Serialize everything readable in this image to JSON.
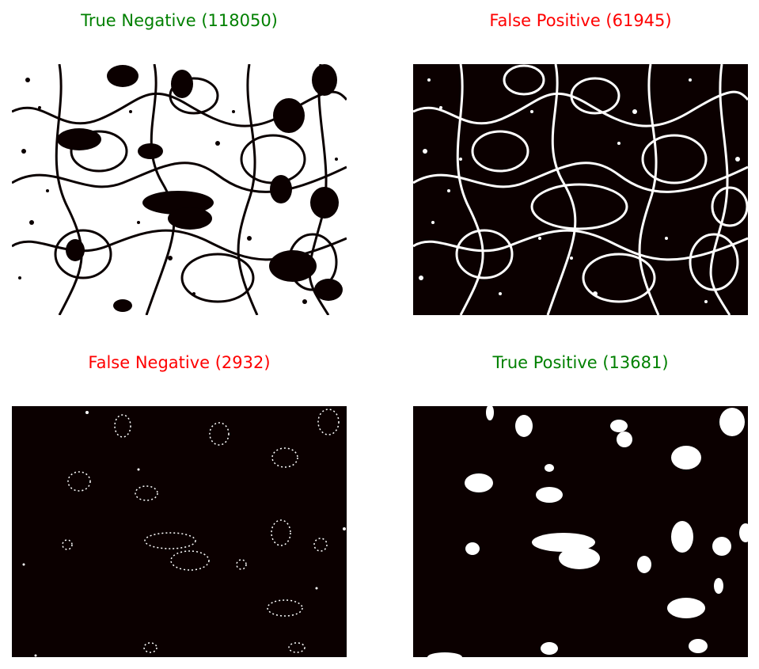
{
  "panels": [
    {
      "title": "True Negative (118050)",
      "title_color": "#008000",
      "image_kind": "mostly white binary mask with dark cell membranes and nuclei",
      "background": "#ffffff",
      "foreground": "#0b0000"
    },
    {
      "title": "False Positive (61945)",
      "title_color": "#ff0000",
      "image_kind": "mostly dark binary mask with white cell membrane network",
      "background": "#0b0000",
      "foreground": "#ffffff"
    },
    {
      "title": "False Negative (2932)",
      "title_color": "#ff0000",
      "image_kind": "dark field with sparse speckled white nuclei",
      "background": "#0b0000",
      "foreground": "#ffffff"
    },
    {
      "title": "True Positive (13681)",
      "title_color": "#008000",
      "image_kind": "dark field with solid white nuclei blobs",
      "background": "#0b0000",
      "foreground": "#ffffff"
    }
  ]
}
